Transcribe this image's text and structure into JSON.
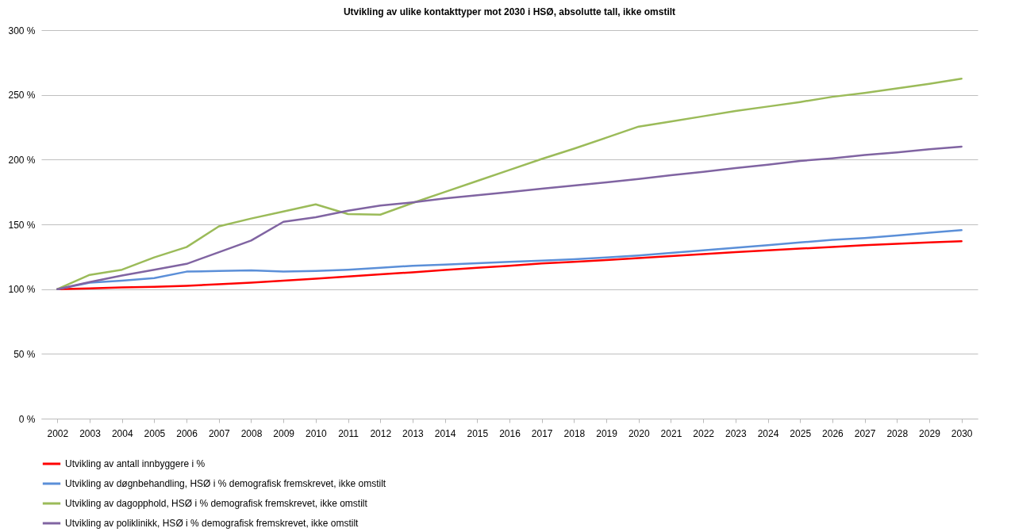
{
  "chart_data": {
    "type": "line",
    "title": "Utvikling av ulike kontakttyper mot 2030 i HSØ, absolutte tall, ikke omstilt",
    "categories": [
      "2002",
      "2003",
      "2004",
      "2005",
      "2006",
      "2007",
      "2008",
      "2009",
      "2010",
      "2011",
      "2012",
      "2013",
      "2014",
      "2015",
      "2016",
      "2017",
      "2018",
      "2019",
      "2020",
      "2021",
      "2022",
      "2023",
      "2024",
      "2025",
      "2026",
      "2027",
      "2028",
      "2029",
      "2030"
    ],
    "series": [
      {
        "name": "Utvikling av antall innbyggere i %",
        "color": "#ff0000",
        "values": [
          100,
          100.6,
          101.3,
          101.8,
          102.6,
          103.8,
          105,
          106.5,
          108,
          109.8,
          111.5,
          113,
          114.8,
          116.5,
          118,
          119.8,
          121,
          122.5,
          124,
          125.5,
          127,
          128.5,
          130,
          131.3,
          132.6,
          134,
          135,
          136,
          137
        ]
      },
      {
        "name": "Utvikling av døgnbehandling, HSØ i % demografisk fremskrevet, ikke omstilt",
        "color": "#5b8fd8",
        "values": [
          100,
          105,
          106.5,
          108.5,
          113.5,
          114,
          114.5,
          113.5,
          114,
          115,
          116.5,
          118,
          119,
          120,
          121,
          122,
          123,
          124.5,
          126,
          128,
          130,
          132,
          134,
          136,
          138,
          139.5,
          141.5,
          143.5,
          145.5
        ]
      },
      {
        "name": "Utvikling av dagopphold, HSØ i % demografisk fremskrevet, ikke omstilt",
        "color": "#9bbb59",
        "values": [
          100,
          111,
          115,
          124.5,
          132.5,
          148.5,
          154.5,
          160,
          165.5,
          158,
          157.5,
          166.5,
          175,
          183.5,
          192,
          200.5,
          208.5,
          217,
          225.5,
          229.5,
          233.5,
          237.5,
          241,
          244.5,
          248.5,
          251.5,
          255,
          258.5,
          262.5
        ]
      },
      {
        "name": "Utvikling av poliklinikk, HSØ i % demografisk fremskrevet, ikke omstilt",
        "color": "#8064a2",
        "values": [
          100,
          105.5,
          110.5,
          115,
          119.5,
          128.5,
          137.5,
          152,
          155.5,
          160.5,
          164.5,
          167,
          170,
          172.5,
          175,
          177.5,
          180,
          182.5,
          185,
          188,
          190.5,
          193.5,
          196,
          199,
          201,
          203.5,
          205.5,
          208,
          210
        ]
      }
    ],
    "ylim": [
      0,
      300
    ],
    "yticks": [
      {
        "value": 0,
        "label": "0 %"
      },
      {
        "value": 50,
        "label": "50 %"
      },
      {
        "value": 100,
        "label": "100 %"
      },
      {
        "value": 150,
        "label": "150 %"
      },
      {
        "value": 200,
        "label": "200 %"
      },
      {
        "value": 250,
        "label": "250 %"
      },
      {
        "value": 300,
        "label": "300 %"
      }
    ],
    "grid": "y",
    "legend": "bottom",
    "marker": "none",
    "line_style": "solid"
  }
}
